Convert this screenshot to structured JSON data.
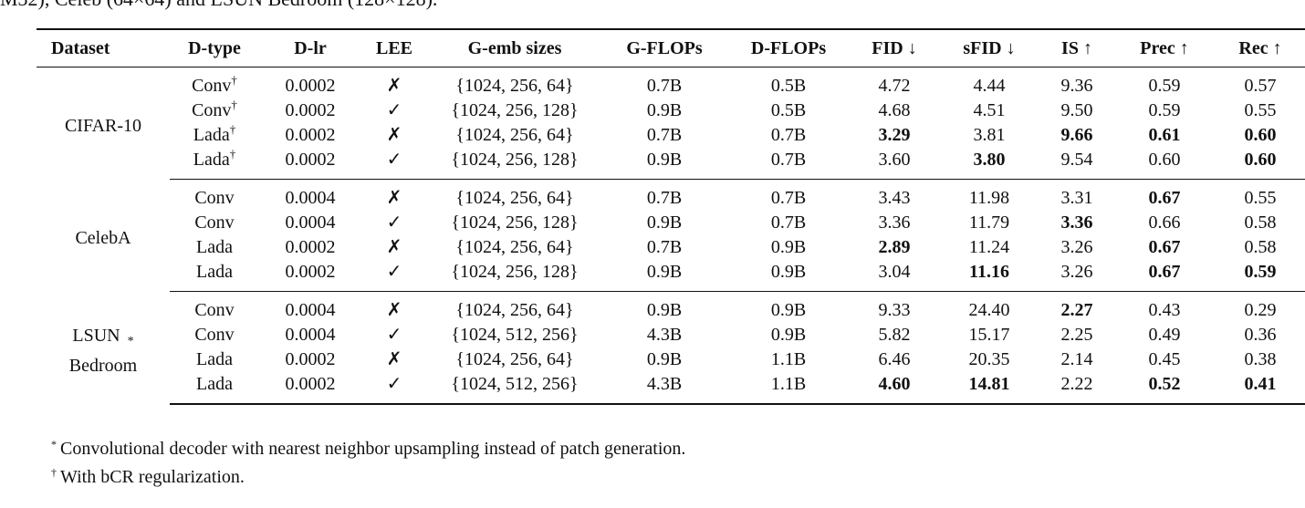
{
  "caption_fragment": "M32), Celeb (64×64) and LSUN Bedroom (128×128).",
  "headers": [
    "Dataset",
    "D-type",
    "D-lr",
    "LEE",
    "G-emb sizes",
    "G-FLOPs",
    "D-FLOPs",
    "FID ↓",
    "sFID ↓",
    "IS ↑",
    "Prec ↑",
    "Rec ↑"
  ],
  "groups": [
    {
      "dataset": "CIFAR-10",
      "rows": [
        {
          "dtype": "Conv",
          "dtype_mark": "†",
          "dlr": "0.0002",
          "lee": "✗",
          "gemb": "{1024, 256, 64}",
          "gflops": "0.7B",
          "dflops": "0.5B",
          "fid": "4.72",
          "sfid": "4.44",
          "is": "9.36",
          "prec": "0.59",
          "rec": "0.57"
        },
        {
          "dtype": "Conv",
          "dtype_mark": "†",
          "dlr": "0.0002",
          "lee": "✓",
          "gemb": "{1024, 256, 128}",
          "gflops": "0.9B",
          "dflops": "0.5B",
          "fid": "4.68",
          "sfid": "4.51",
          "is": "9.50",
          "prec": "0.59",
          "rec": "0.55"
        },
        {
          "dtype": "Lada",
          "dtype_mark": "†",
          "dlr": "0.0002",
          "lee": "✗",
          "gemb": "{1024, 256, 64}",
          "gflops": "0.7B",
          "dflops": "0.7B",
          "fid": "3.29",
          "sfid": "3.81",
          "is": "9.66",
          "prec": "0.61",
          "rec": "0.60"
        },
        {
          "dtype": "Lada",
          "dtype_mark": "†",
          "dlr": "0.0002",
          "lee": "✓",
          "gemb": "{1024, 256, 128}",
          "gflops": "0.9B",
          "dflops": "0.7B",
          "fid": "3.60",
          "sfid": "3.80",
          "is": "9.54",
          "prec": "0.60",
          "rec": "0.60"
        }
      ]
    },
    {
      "dataset": "CelebA",
      "rows": [
        {
          "dtype": "Conv",
          "dtype_mark": "",
          "dlr": "0.0004",
          "lee": "✗",
          "gemb": "{1024, 256, 64}",
          "gflops": "0.7B",
          "dflops": "0.7B",
          "fid": "3.43",
          "sfid": "11.98",
          "is": "3.31",
          "prec": "0.67",
          "rec": "0.55"
        },
        {
          "dtype": "Conv",
          "dtype_mark": "",
          "dlr": "0.0004",
          "lee": "✓",
          "gemb": "{1024, 256, 128}",
          "gflops": "0.9B",
          "dflops": "0.7B",
          "fid": "3.36",
          "sfid": "11.79",
          "is": "3.36",
          "prec": "0.66",
          "rec": "0.58"
        },
        {
          "dtype": "Lada",
          "dtype_mark": "",
          "dlr": "0.0002",
          "lee": "✗",
          "gemb": "{1024, 256, 64}",
          "gflops": "0.7B",
          "dflops": "0.9B",
          "fid": "2.89",
          "sfid": "11.24",
          "is": "3.26",
          "prec": "0.67",
          "rec": "0.58"
        },
        {
          "dtype": "Lada",
          "dtype_mark": "",
          "dlr": "0.0002",
          "lee": "✓",
          "gemb": "{1024, 256, 128}",
          "gflops": "0.9B",
          "dflops": "0.9B",
          "fid": "3.04",
          "sfid": "11.16",
          "is": "3.26",
          "prec": "0.67",
          "rec": "0.59"
        }
      ]
    },
    {
      "dataset_line1": "LSUN",
      "dataset_mark": "*",
      "dataset_line2": "Bedroom",
      "rows": [
        {
          "dtype": "Conv",
          "dtype_mark": "",
          "dlr": "0.0004",
          "lee": "✗",
          "gemb": "{1024, 256, 64}",
          "gflops": "0.9B",
          "dflops": "0.9B",
          "fid": "9.33",
          "sfid": "24.40",
          "is": "2.27",
          "prec": "0.43",
          "rec": "0.29"
        },
        {
          "dtype": "Conv",
          "dtype_mark": "",
          "dlr": "0.0004",
          "lee": "✓",
          "gemb": "{1024, 512, 256}",
          "gflops": "4.3B",
          "dflops": "0.9B",
          "fid": "5.82",
          "sfid": "15.17",
          "is": "2.25",
          "prec": "0.49",
          "rec": "0.36"
        },
        {
          "dtype": "Lada",
          "dtype_mark": "",
          "dlr": "0.0002",
          "lee": "✗",
          "gemb": "{1024, 256, 64}",
          "gflops": "0.9B",
          "dflops": "1.1B",
          "fid": "6.46",
          "sfid": "20.35",
          "is": "2.14",
          "prec": "0.45",
          "rec": "0.38"
        },
        {
          "dtype": "Lada",
          "dtype_mark": "",
          "dlr": "0.0002",
          "lee": "✓",
          "gemb": "{1024, 512, 256}",
          "gflops": "4.3B",
          "dflops": "1.1B",
          "fid": "4.60",
          "sfid": "14.81",
          "is": "2.22",
          "prec": "0.52",
          "rec": "0.41"
        }
      ]
    }
  ],
  "footnotes": [
    {
      "mark": "*",
      "text": "Convolutional decoder with nearest neighbor upsampling instead of patch generation."
    },
    {
      "mark": "†",
      "text": "With bCR regularization."
    }
  ]
}
